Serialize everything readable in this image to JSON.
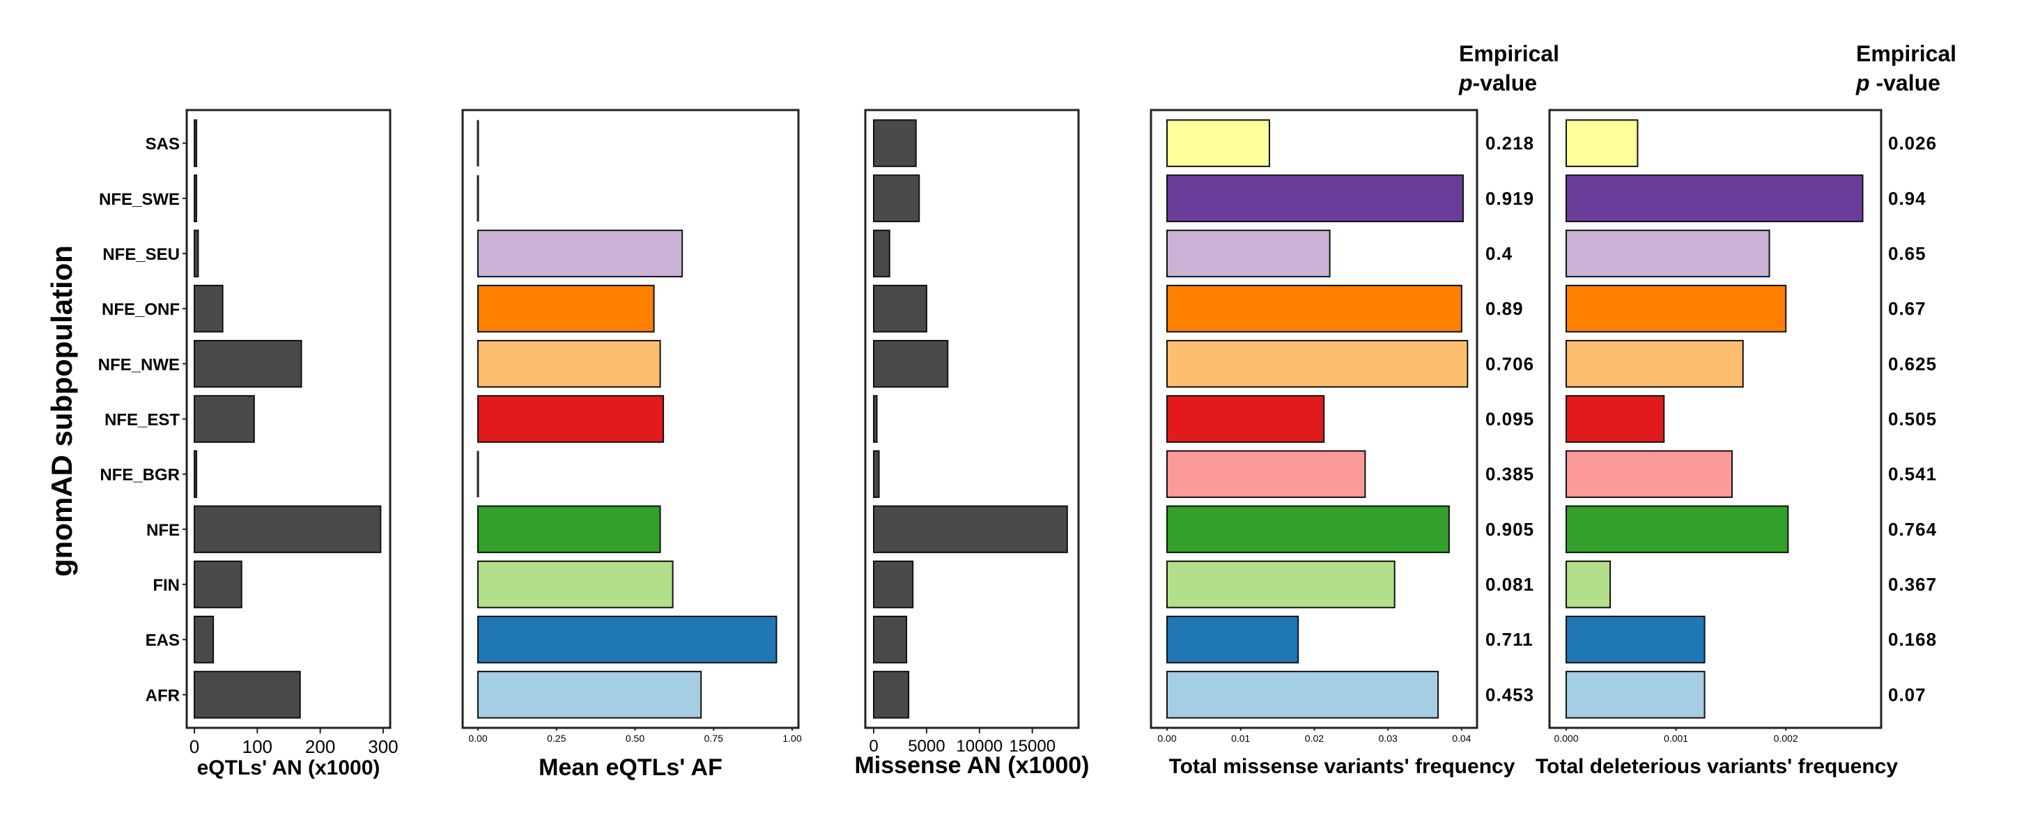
{
  "y_axis_title": "gnomAD subpopulation",
  "pvalue_header": {
    "line1": "Empirical",
    "line2_italic": "p",
    "line2_rest": "-value",
    "line2_rest_spaced": " -value"
  },
  "categories": [
    "SAS",
    "NFE_SWE",
    "NFE_SEU",
    "NFE_ONF",
    "NFE_NWE",
    "NFE_EST",
    "NFE_BGR",
    "NFE",
    "FIN",
    "EAS",
    "AFR"
  ],
  "colors": {
    "dark_bar": "#4a4a4a",
    "subpop": [
      "#ffff99",
      "#6a3d9a",
      "#cab2d6",
      "#ff7f00",
      "#fdbf6f",
      "#e31a1c",
      "#fb9a99",
      "#33a02c",
      "#b2df8a",
      "#1f78b4",
      "#a6cee3"
    ]
  },
  "chart_data": [
    {
      "type": "bar",
      "orientation": "horizontal",
      "xlabel": "eQTLs' AN (x1000)",
      "categories": [
        "SAS",
        "NFE_SWE",
        "NFE_SEU",
        "NFE_ONF",
        "NFE_NWE",
        "NFE_EST",
        "NFE_BGR",
        "NFE",
        "FIN",
        "EAS",
        "AFR"
      ],
      "values": [
        2,
        2,
        6,
        45,
        170,
        95,
        2,
        296,
        75,
        30,
        168
      ],
      "xlim": [
        0,
        320
      ],
      "xticks": [
        0,
        100,
        200,
        300
      ],
      "xtick_labels": [
        "0",
        "100",
        "200",
        "300"
      ]
    },
    {
      "type": "bar",
      "orientation": "horizontal",
      "xlabel": "Mean eQTLs' AF",
      "categories": [
        "SAS",
        "NFE_SWE",
        "NFE_SEU",
        "NFE_ONF",
        "NFE_NWE",
        "NFE_EST",
        "NFE_BGR",
        "NFE",
        "FIN",
        "EAS",
        "AFR"
      ],
      "values": [
        0,
        0,
        0.65,
        0.56,
        0.58,
        0.59,
        0,
        0.58,
        0.62,
        0.95,
        0.71
      ],
      "xlim": [
        0,
        1
      ],
      "xticks": [
        0,
        0.25,
        0.5,
        0.75,
        1
      ],
      "xtick_labels": [
        "0.00",
        "0.25",
        "0.50",
        "0.75",
        "1.00"
      ]
    },
    {
      "type": "bar",
      "orientation": "horizontal",
      "xlabel": "Missense AN (x1000)",
      "categories": [
        "SAS",
        "NFE_SWE",
        "NFE_SEU",
        "NFE_ONF",
        "NFE_NWE",
        "NFE_EST",
        "NFE_BGR",
        "NFE",
        "FIN",
        "EAS",
        "AFR"
      ],
      "values": [
        4000,
        4300,
        1500,
        5000,
        7000,
        300,
        500,
        18300,
        3700,
        3100,
        3300
      ],
      "xlim": [
        0,
        19500
      ],
      "xticks": [
        0,
        5000,
        10000,
        15000
      ],
      "xtick_labels": [
        "0",
        "5000",
        "10000",
        "15000"
      ]
    },
    {
      "type": "bar",
      "orientation": "horizontal",
      "xlabel": "Total missense variants' frequency",
      "categories": [
        "SAS",
        "NFE_SWE",
        "NFE_SEU",
        "NFE_ONF",
        "NFE_NWE",
        "NFE_EST",
        "NFE_BGR",
        "NFE",
        "FIN",
        "EAS",
        "AFR"
      ],
      "values": [
        0.0139,
        0.0402,
        0.0221,
        0.04,
        0.0408,
        0.0213,
        0.0269,
        0.0383,
        0.0309,
        0.0178,
        0.0368
      ],
      "xlim": [
        0,
        0.042
      ],
      "xticks": [
        0,
        0.01,
        0.02,
        0.03,
        0.04
      ],
      "xtick_labels": [
        "0.00",
        "0.01",
        "0.02",
        "0.03",
        "0.04"
      ],
      "pvalues": [
        "0.218",
        "0.919",
        "0.4",
        "0.89",
        "0.706",
        "0.095",
        "0.385",
        "0.905",
        "0.081",
        "0.711",
        "0.453"
      ]
    },
    {
      "type": "bar",
      "orientation": "horizontal",
      "xlabel": "Total deleterious variants' frequency",
      "categories": [
        "SAS",
        "NFE_SWE",
        "NFE_SEU",
        "NFE_ONF",
        "NFE_NWE",
        "NFE_EST",
        "NFE_BGR",
        "NFE",
        "FIN",
        "EAS",
        "AFR"
      ],
      "values": [
        0.00065,
        0.0027,
        0.00185,
        0.002,
        0.00161,
        0.00089,
        0.00151,
        0.00202,
        0.0004,
        0.00126,
        0.00126
      ],
      "xlim": [
        0,
        0.00283
      ],
      "xticks": [
        0,
        0.001,
        0.002
      ],
      "xtick_labels": [
        "0.000",
        "0.001",
        "0.002"
      ],
      "pvalues": [
        "0.026",
        "0.94",
        "0.65",
        "0.67",
        "0.625",
        "0.505",
        "0.541",
        "0.764",
        "0.367",
        "0.168",
        "0.07"
      ]
    }
  ]
}
